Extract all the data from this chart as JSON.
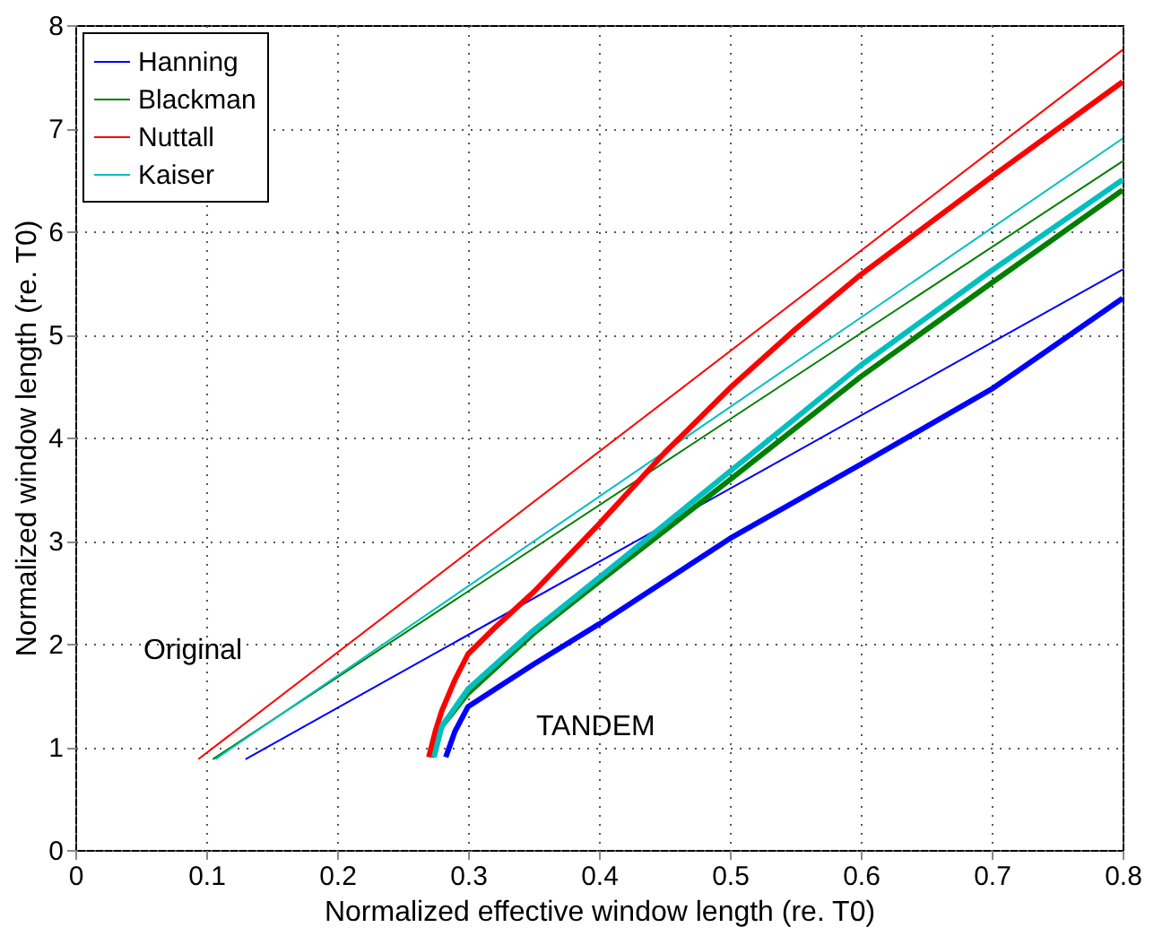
{
  "chart_data": {
    "type": "line",
    "xlabel": "Normalized effective window length (re. T0)",
    "ylabel": "Normalized  window length (re. T0)",
    "xlim": [
      0,
      0.8
    ],
    "xticks": [
      0,
      0.1,
      0.2,
      0.3,
      0.4,
      0.5,
      0.6,
      0.7,
      0.8
    ],
    "ylim": [
      0,
      8
    ],
    "yticks": [
      0,
      1,
      2,
      3,
      4,
      5,
      6,
      7,
      8
    ],
    "grid": true,
    "legend": "top left",
    "line_style": "solid",
    "series": [
      {
        "name": "Hanning",
        "color": "#0000ff",
        "x": [
          0.13,
          0.8
        ],
        "values": [
          0.88,
          5.63
        ]
      },
      {
        "name": "Blackman",
        "color": "#007f00",
        "x": [
          0.105,
          0.8
        ],
        "values": [
          0.88,
          6.68
        ]
      },
      {
        "name": "Nuttall",
        "color": "#ff0000",
        "x": [
          0.094,
          0.8
        ],
        "values": [
          0.88,
          7.76
        ]
      },
      {
        "name": "Kaiser",
        "color": "#00bfbf",
        "x": [
          0.107,
          0.8
        ],
        "values": [
          0.88,
          6.9
        ]
      },
      {
        "color": "#0000ff",
        "x": [
          0.283,
          0.29,
          0.3,
          0.35,
          0.4,
          0.5,
          0.6,
          0.7,
          0.8
        ],
        "values": [
          0.9,
          1.15,
          1.39,
          1.8,
          2.19,
          3.02,
          3.74,
          4.47,
          5.35
        ]
      },
      {
        "color": "#007f00",
        "x": [
          0.272,
          0.28,
          0.3,
          0.35,
          0.4,
          0.5,
          0.6,
          0.7,
          0.8
        ],
        "values": [
          0.9,
          1.2,
          1.52,
          2.1,
          2.6,
          3.59,
          4.59,
          5.5,
          6.4
        ]
      },
      {
        "color": "#ff0000",
        "x": [
          0.27,
          0.275,
          0.28,
          0.29,
          0.3,
          0.32,
          0.35,
          0.4,
          0.45,
          0.5,
          0.55,
          0.6,
          0.7,
          0.8
        ],
        "values": [
          0.9,
          1.15,
          1.35,
          1.65,
          1.9,
          2.15,
          2.5,
          3.16,
          3.85,
          4.48,
          5.05,
          5.58,
          6.53,
          7.45
        ]
      },
      {
        "color": "#00bfbf",
        "x": [
          0.274,
          0.28,
          0.3,
          0.35,
          0.4,
          0.5,
          0.6,
          0.7,
          0.8
        ],
        "values": [
          0.9,
          1.2,
          1.56,
          2.13,
          2.64,
          3.67,
          4.7,
          5.62,
          6.5
        ]
      }
    ],
    "annotations": [
      "Original",
      "TANDEM"
    ]
  }
}
